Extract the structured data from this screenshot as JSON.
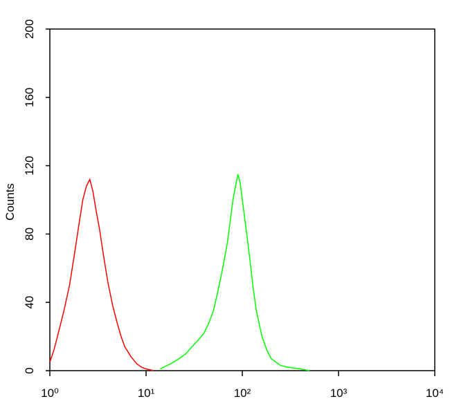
{
  "chart_data": {
    "type": "line",
    "ylabel": "Counts",
    "xscale": "log",
    "xlim": [
      1,
      10000
    ],
    "xticks": [
      {
        "value": 1,
        "label": "10⁰"
      },
      {
        "value": 10,
        "label": "10¹"
      },
      {
        "value": 100,
        "label": "10²"
      },
      {
        "value": 1000,
        "label": "10³"
      },
      {
        "value": 10000,
        "label": "10⁴"
      }
    ],
    "ylim": [
      0,
      200
    ],
    "yticks": [
      0,
      40,
      80,
      120,
      160,
      200
    ],
    "series": [
      {
        "color": "#ff0000",
        "x": [
          1,
          1.1,
          1.2,
          1.4,
          1.6,
          1.8,
          2.0,
          2.2,
          2.4,
          2.6,
          2.8,
          3.0,
          3.3,
          3.6,
          4.0,
          4.5,
          5.0,
          5.5,
          6.0,
          7.0,
          8.0,
          9.0,
          10,
          12
        ],
        "values": [
          5,
          12,
          20,
          35,
          50,
          68,
          85,
          100,
          108,
          112,
          105,
          95,
          82,
          68,
          52,
          38,
          28,
          20,
          14,
          8,
          4,
          2,
          1,
          0
        ]
      },
      {
        "color": "#00ff00",
        "x": [
          14,
          18,
          22,
          26,
          30,
          35,
          40,
          45,
          50,
          55,
          60,
          65,
          70,
          75,
          80,
          85,
          90,
          95,
          100,
          110,
          120,
          130,
          140,
          160,
          180,
          200,
          250,
          300,
          400,
          500
        ],
        "values": [
          1,
          4,
          7,
          10,
          14,
          18,
          22,
          28,
          35,
          45,
          55,
          65,
          75,
          88,
          100,
          108,
          115,
          110,
          100,
          82,
          65,
          48,
          35,
          20,
          12,
          7,
          3,
          2,
          1,
          0
        ]
      }
    ]
  }
}
